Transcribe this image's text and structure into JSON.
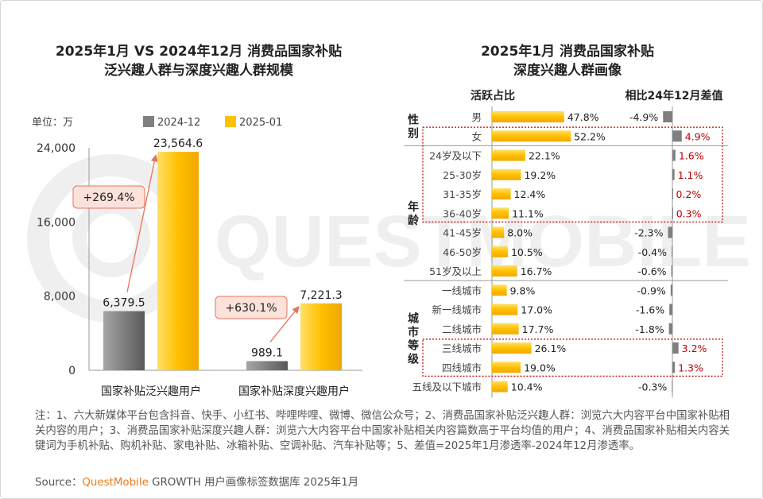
{
  "left_chart_title": [
    "2025年1月 VS 2024年12月 消费品国家补贴",
    "泛兴趣人群与深度兴趣人群规模"
  ],
  "right_chart_title": [
    "2025年1月 消费品国家补贴",
    "深度兴趣人群画像"
  ],
  "unit_label": "单位：万",
  "watermark": "QUESTMOBILE",
  "notes": "注：1、六大新媒体平台包含抖音、快手、小红书、哔哩哔哩、微博、微信公众号；2、消费品国家补贴泛兴趣人群：浏览六大内容平台中国家补贴相关内容的用户；3、消费品国家补贴深度兴趣人群：浏览六大内容平台中国家补贴相关内容篇数高于平台均值的用户；4、消费品国家补贴相关内容关键词为手机补贴、购机补贴、家电补贴、冰箱补贴、空调补贴、汽车补贴等；5、差值=2025年1月渗透率-2024年12月渗透率。",
  "source": {
    "prefix": "Source：",
    "brand": "QuestMobile",
    "rest": " GROWTH 用户画像标签数据库  2025年1月"
  },
  "colors": {
    "gray": "#7f7f7f",
    "yellow": "#ffc000",
    "red": "#c00000",
    "arrow": "#e8735a"
  },
  "chart_data": [
    {
      "type": "bar",
      "categories": [
        "国家补贴泛兴趣用户",
        "国家补贴深度兴趣用户"
      ],
      "series": [
        {
          "name": "2024-12",
          "values": [
            6379.5,
            989.1
          ]
        },
        {
          "name": "2025-01",
          "values": [
            23564.6,
            7221.3
          ]
        }
      ],
      "value_labels": [
        [
          "6,379.5",
          "989.1"
        ],
        [
          "23,564.6",
          "7,221.3"
        ]
      ],
      "growth_labels": [
        "+269.4%",
        "+630.1%"
      ],
      "yticks": [
        "0",
        "8,000",
        "16,000",
        "24,000"
      ],
      "ylim": [
        0,
        24000
      ],
      "legend_position": "top"
    },
    {
      "type": "bar",
      "orientation": "horizontal",
      "column_headers": [
        "活跃占比",
        "相比24年12月差值"
      ],
      "groups": [
        {
          "label": "性别",
          "rows": [
            "男",
            "女"
          ]
        },
        {
          "label": "年龄",
          "rows": [
            "24岁及以下",
            "25-30岁",
            "31-35岁",
            "36-40岁",
            "41-45岁",
            "46-50岁",
            "51岁及以上"
          ]
        },
        {
          "label": "城市等级",
          "rows": [
            "一线城市",
            "新一线城市",
            "二线城市",
            "三线城市",
            "四线城市",
            "五线及以下城市"
          ]
        }
      ],
      "rows": [
        {
          "label": "男",
          "share": 47.8,
          "share_label": "47.8%",
          "diff": -4.9,
          "diff_label": "-4.9%",
          "highlight": false
        },
        {
          "label": "女",
          "share": 52.2,
          "share_label": "52.2%",
          "diff": 4.9,
          "diff_label": "4.9%",
          "highlight": true
        },
        {
          "label": "24岁及以下",
          "share": 22.1,
          "share_label": "22.1%",
          "diff": 1.6,
          "diff_label": "1.6%",
          "highlight": true
        },
        {
          "label": "25-30岁",
          "share": 19.2,
          "share_label": "19.2%",
          "diff": 1.1,
          "diff_label": "1.1%",
          "highlight": true
        },
        {
          "label": "31-35岁",
          "share": 12.4,
          "share_label": "12.4%",
          "diff": 0.2,
          "diff_label": "0.2%",
          "highlight": true
        },
        {
          "label": "36-40岁",
          "share": 11.1,
          "share_label": "11.1%",
          "diff": 0.3,
          "diff_label": "0.3%",
          "highlight": true
        },
        {
          "label": "41-45岁",
          "share": 8.0,
          "share_label": "8.0%",
          "diff": -2.3,
          "diff_label": "-2.3%",
          "highlight": false
        },
        {
          "label": "46-50岁",
          "share": 10.5,
          "share_label": "10.5%",
          "diff": -0.4,
          "diff_label": "-0.4%",
          "highlight": false
        },
        {
          "label": "51岁及以上",
          "share": 16.7,
          "share_label": "16.7%",
          "diff": -0.6,
          "diff_label": "-0.6%",
          "highlight": false
        },
        {
          "label": "一线城市",
          "share": 9.8,
          "share_label": "9.8%",
          "diff": -0.9,
          "diff_label": "-0.9%",
          "highlight": false
        },
        {
          "label": "新一线城市",
          "share": 17.0,
          "share_label": "17.0%",
          "diff": -1.6,
          "diff_label": "-1.6%",
          "highlight": false
        },
        {
          "label": "二线城市",
          "share": 17.7,
          "share_label": "17.7%",
          "diff": -1.8,
          "diff_label": "-1.8%",
          "highlight": false
        },
        {
          "label": "三线城市",
          "share": 26.1,
          "share_label": "26.1%",
          "diff": 3.2,
          "diff_label": "3.2%",
          "highlight": true
        },
        {
          "label": "四线城市",
          "share": 19.0,
          "share_label": "19.0%",
          "diff": 1.3,
          "diff_label": "1.3%",
          "highlight": true
        },
        {
          "label": "五线及以下城市",
          "share": 10.4,
          "share_label": "10.4%",
          "diff": -0.3,
          "diff_label": "-0.3%",
          "highlight": false
        }
      ]
    }
  ]
}
